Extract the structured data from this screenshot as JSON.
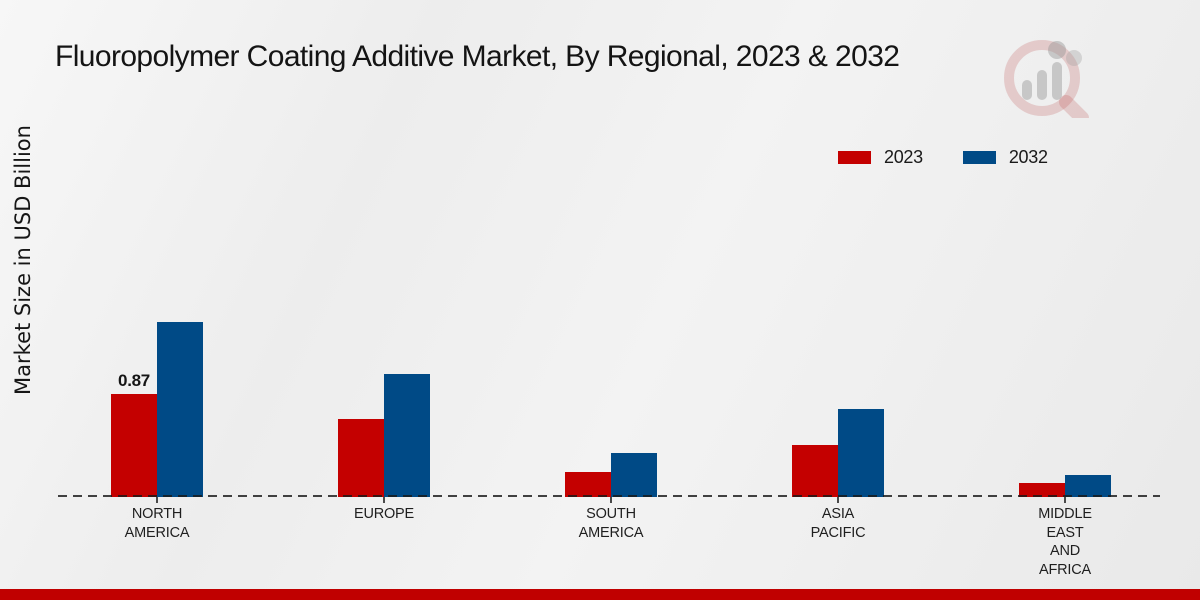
{
  "page": {
    "title": "Fluoropolymer Coating Additive Market, By Regional, 2023 & 2032"
  },
  "y_axis": {
    "label": "Market Size in USD Billion"
  },
  "legend": [
    {
      "label": "2023",
      "color": "#C40000"
    },
    {
      "label": "2032",
      "color": "#004A86"
    }
  ],
  "icons": {
    "logo": "magnifier-bar-chart-watermark-logo"
  },
  "colors": {
    "series_2023": "#C40000",
    "series_2032": "#004A86",
    "footer_bar": "#C00000",
    "background": "#EFEFEF",
    "text": "#1A1A1A"
  },
  "chart_data": {
    "type": "bar",
    "title": "Fluoropolymer Coating Additive Market, By Regional, 2023 & 2032",
    "xlabel": "",
    "ylabel": "Market Size in USD Billion",
    "categories": [
      "NORTH AMERICA",
      "EUROPE",
      "SOUTH AMERICA",
      "ASIA PACIFIC",
      "MIDDLE EAST AND AFRICA"
    ],
    "category_label_lines": [
      [
        "NORTH",
        "AMERICA"
      ],
      [
        "EUROPE"
      ],
      [
        "SOUTH",
        "AMERICA"
      ],
      [
        "ASIA",
        "PACIFIC"
      ],
      [
        "MIDDLE",
        "EAST",
        "AND",
        "AFRICA"
      ]
    ],
    "series": [
      {
        "name": "2023",
        "color": "#C40000",
        "values": [
          0.87,
          0.66,
          0.21,
          0.44,
          0.12
        ],
        "point_labels": [
          "0.87",
          "",
          "",
          "",
          ""
        ]
      },
      {
        "name": "2032",
        "color": "#004A86",
        "values": [
          1.48,
          1.04,
          0.37,
          0.74,
          0.19
        ],
        "point_labels": [
          "",
          "",
          "",
          "",
          ""
        ]
      }
    ],
    "ylim": [
      0,
      1.6
    ],
    "grid": false,
    "axis_line": "dashed-baseline-only",
    "legend_position": "top-right"
  }
}
